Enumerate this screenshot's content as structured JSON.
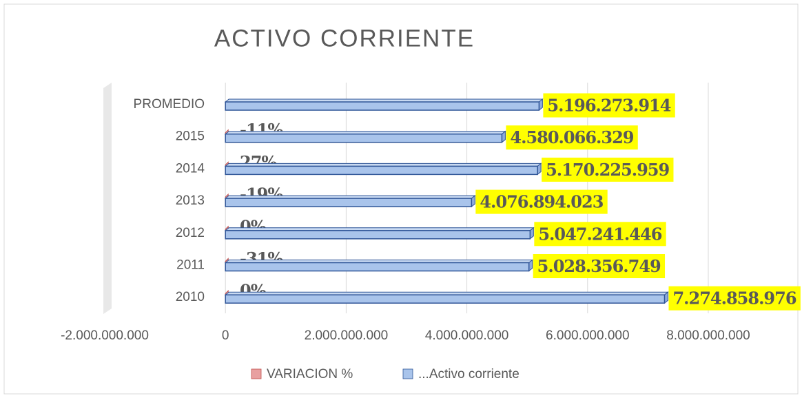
{
  "chart_data": {
    "type": "bar",
    "orientation": "horizontal",
    "title": "ACTIVO CORRIENTE",
    "categories": [
      "PROMEDIO",
      "2015",
      "2014",
      "2013",
      "2012",
      "2011",
      "2010"
    ],
    "series": [
      {
        "name": "VARIACION %",
        "color": "#e8a0a0",
        "values": [
          null,
          -0.11,
          0.27,
          -0.19,
          0,
          -0.31,
          0
        ],
        "value_labels": [
          null,
          "-11%",
          "27%",
          "-19%",
          "0%",
          "-31%",
          "0%"
        ]
      },
      {
        "name": "...Activo corriente",
        "color": "#a9c4eb",
        "values": [
          5196273914,
          4580066329,
          5170225959,
          4076894023,
          5047241446,
          5028356749,
          7274858976
        ],
        "value_labels": [
          "5.196.273.914",
          "4.580.066.329",
          "5.170.225.959",
          "4.076.894.023",
          "5.047.241.446",
          "5.028.356.749",
          "7.274.858.976"
        ]
      }
    ],
    "xlim": [
      -2000000000,
      8000000000
    ],
    "xticks": [
      {
        "value": -2000000000,
        "label": "-2.000.000.000"
      },
      0,
      {
        "value": 2000000000,
        "label": "2.000.000.000"
      },
      {
        "value": 4000000000,
        "label": "4.000.000.000"
      },
      {
        "value": 6000000000,
        "label": "6.000.000.000"
      },
      {
        "value": 8000000000,
        "label": "8.000.000.000"
      }
    ],
    "grid": true,
    "legend": "bottom"
  }
}
